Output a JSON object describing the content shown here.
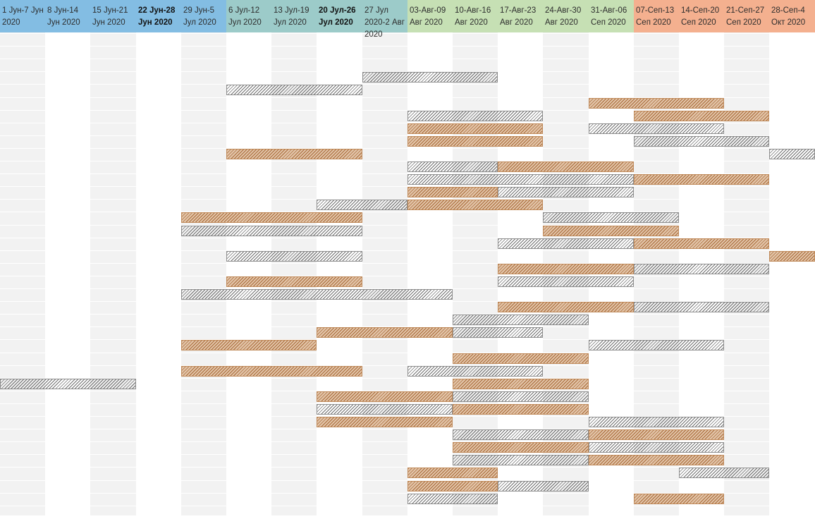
{
  "timeline": {
    "weeks": [
      {
        "label": "1 Jун-7 Jун 2020",
        "header_color": "#83bde3",
        "bold": false
      },
      {
        "label": "8 Jун-14 Jун 2020",
        "header_color": "#83bde3",
        "bold": false
      },
      {
        "label": "15 Jун-21 Jун 2020",
        "header_color": "#83bde3",
        "bold": false
      },
      {
        "label": "22 Jун-28 Jун 2020",
        "header_color": "#83bde3",
        "bold": true
      },
      {
        "label": "29 Jун-5 Jул 2020",
        "header_color": "#83bde3",
        "bold": false
      },
      {
        "label": "6 Jул-12 Jул 2020",
        "header_color": "#9ccbc9",
        "bold": false
      },
      {
        "label": "13 Jул-19 Jул 2020",
        "header_color": "#9ccbc9",
        "bold": false
      },
      {
        "label": "20 Jул-26 Jул 2020",
        "header_color": "#9ccbc9",
        "bold": true
      },
      {
        "label": "27 Jул 2020-2 Авг 2020",
        "header_color": "#9ccbc9",
        "bold": false
      },
      {
        "label": "03-Авг-09 Авг 2020",
        "header_color": "#c6e0b4",
        "bold": false
      },
      {
        "label": "10-Авг-16 Авг 2020",
        "header_color": "#c6e0b4",
        "bold": false
      },
      {
        "label": "17-Авг-23 Авг 2020",
        "header_color": "#c6e0b4",
        "bold": false
      },
      {
        "label": "24-Авг-30 Авг 2020",
        "header_color": "#c6e0b4",
        "bold": false
      },
      {
        "label": "31-Авг-06 Сеп 2020",
        "header_color": "#c6e0b4",
        "bold": false
      },
      {
        "label": "07-Сеп-13 Сеп 2020",
        "header_color": "#f4b08f",
        "bold": false
      },
      {
        "label": "14-Сеп-20 Сеп 2020",
        "header_color": "#f4b08f",
        "bold": false
      },
      {
        "label": "21-Сеп-27 Сеп 2020",
        "header_color": "#f4b08f",
        "bold": false
      },
      {
        "label": "28-Сеп-4 Окт 2020",
        "header_color": "#f4b08f",
        "bold": false
      }
    ],
    "column_fill": [
      "#f2f2f2",
      "#ffffff",
      "#f2f2f2",
      "#ffffff",
      "#f2f2f2",
      "#ffffff",
      "#f2f2f2",
      "#ffffff",
      "#f2f2f2",
      "#ffffff",
      "#f2f2f2",
      "#ffffff",
      "#f2f2f2",
      "#ffffff",
      "#f2f2f2",
      "#ffffff",
      "#f2f2f2",
      "#ffffff"
    ],
    "row_count": 38
  },
  "tasks": [
    {
      "row": 3,
      "start": 8,
      "end": 10,
      "style": "gray"
    },
    {
      "row": 4,
      "start": 5,
      "end": 7,
      "style": "gray"
    },
    {
      "row": 5,
      "start": 13,
      "end": 15,
      "style": "orange"
    },
    {
      "row": 6,
      "start": 9,
      "end": 11,
      "style": "gray"
    },
    {
      "row": 6,
      "start": 14,
      "end": 16,
      "style": "orange"
    },
    {
      "row": 7,
      "start": 9,
      "end": 11,
      "style": "orange"
    },
    {
      "row": 7,
      "start": 13,
      "end": 15,
      "style": "gray"
    },
    {
      "row": 8,
      "start": 9,
      "end": 11,
      "style": "orange"
    },
    {
      "row": 8,
      "start": 14,
      "end": 16,
      "style": "gray"
    },
    {
      "row": 9,
      "start": 5,
      "end": 7,
      "style": "orange"
    },
    {
      "row": 9,
      "start": 17,
      "end": 17,
      "style": "gray"
    },
    {
      "row": 10,
      "start": 9,
      "end": 10,
      "style": "gray"
    },
    {
      "row": 10,
      "start": 11,
      "end": 13,
      "style": "orange"
    },
    {
      "row": 11,
      "start": 9,
      "end": 13,
      "style": "gray"
    },
    {
      "row": 11,
      "start": 14,
      "end": 16,
      "style": "orange"
    },
    {
      "row": 12,
      "start": 9,
      "end": 10,
      "style": "orange"
    },
    {
      "row": 12,
      "start": 11,
      "end": 13,
      "style": "gray"
    },
    {
      "row": 13,
      "start": 7,
      "end": 8,
      "style": "gray"
    },
    {
      "row": 13,
      "start": 9,
      "end": 11,
      "style": "orange"
    },
    {
      "row": 14,
      "start": 4,
      "end": 7,
      "style": "orange"
    },
    {
      "row": 14,
      "start": 12,
      "end": 14,
      "style": "gray"
    },
    {
      "row": 15,
      "start": 4,
      "end": 7,
      "style": "gray"
    },
    {
      "row": 15,
      "start": 12,
      "end": 14,
      "style": "orange"
    },
    {
      "row": 16,
      "start": 11,
      "end": 13,
      "style": "gray"
    },
    {
      "row": 16,
      "start": 14,
      "end": 16,
      "style": "orange"
    },
    {
      "row": 17,
      "start": 5,
      "end": 7,
      "style": "gray"
    },
    {
      "row": 17,
      "start": 17,
      "end": 17,
      "style": "orange"
    },
    {
      "row": 18,
      "start": 11,
      "end": 13,
      "style": "orange"
    },
    {
      "row": 18,
      "start": 14,
      "end": 16,
      "style": "gray"
    },
    {
      "row": 19,
      "start": 5,
      "end": 7,
      "style": "orange"
    },
    {
      "row": 19,
      "start": 11,
      "end": 13,
      "style": "gray"
    },
    {
      "row": 20,
      "start": 4,
      "end": 9,
      "style": "gray"
    },
    {
      "row": 21,
      "start": 11,
      "end": 13,
      "style": "orange"
    },
    {
      "row": 21,
      "start": 14,
      "end": 16,
      "style": "gray"
    },
    {
      "row": 22,
      "start": 10,
      "end": 12,
      "style": "gray"
    },
    {
      "row": 23,
      "start": 7,
      "end": 9,
      "style": "orange"
    },
    {
      "row": 23,
      "start": 10,
      "end": 11,
      "style": "gray"
    },
    {
      "row": 24,
      "start": 4,
      "end": 6,
      "style": "orange"
    },
    {
      "row": 24,
      "start": 13,
      "end": 15,
      "style": "gray"
    },
    {
      "row": 25,
      "start": 10,
      "end": 12,
      "style": "orange"
    },
    {
      "row": 26,
      "start": 4,
      "end": 7,
      "style": "orange"
    },
    {
      "row": 26,
      "start": 9,
      "end": 11,
      "style": "gray"
    },
    {
      "row": 27,
      "start": 0,
      "end": 2,
      "style": "gray"
    },
    {
      "row": 27,
      "start": 10,
      "end": 12,
      "style": "orange"
    },
    {
      "row": 28,
      "start": 7,
      "end": 9,
      "style": "orange"
    },
    {
      "row": 28,
      "start": 10,
      "end": 12,
      "style": "gray"
    },
    {
      "row": 29,
      "start": 7,
      "end": 9,
      "style": "gray"
    },
    {
      "row": 29,
      "start": 10,
      "end": 12,
      "style": "orange"
    },
    {
      "row": 30,
      "start": 7,
      "end": 9,
      "style": "orange"
    },
    {
      "row": 30,
      "start": 13,
      "end": 15,
      "style": "gray"
    },
    {
      "row": 31,
      "start": 10,
      "end": 12,
      "style": "gray"
    },
    {
      "row": 31,
      "start": 13,
      "end": 15,
      "style": "orange"
    },
    {
      "row": 32,
      "start": 10,
      "end": 12,
      "style": "orange"
    },
    {
      "row": 32,
      "start": 13,
      "end": 15,
      "style": "gray"
    },
    {
      "row": 33,
      "start": 10,
      "end": 12,
      "style": "gray"
    },
    {
      "row": 33,
      "start": 13,
      "end": 15,
      "style": "orange"
    },
    {
      "row": 34,
      "start": 9,
      "end": 10,
      "style": "orange"
    },
    {
      "row": 34,
      "start": 15,
      "end": 16,
      "style": "gray"
    },
    {
      "row": 35,
      "start": 9,
      "end": 10,
      "style": "orange"
    },
    {
      "row": 35,
      "start": 11,
      "end": 12,
      "style": "gray"
    },
    {
      "row": 36,
      "start": 9,
      "end": 10,
      "style": "gray"
    },
    {
      "row": 36,
      "start": 14,
      "end": 15,
      "style": "orange"
    }
  ]
}
